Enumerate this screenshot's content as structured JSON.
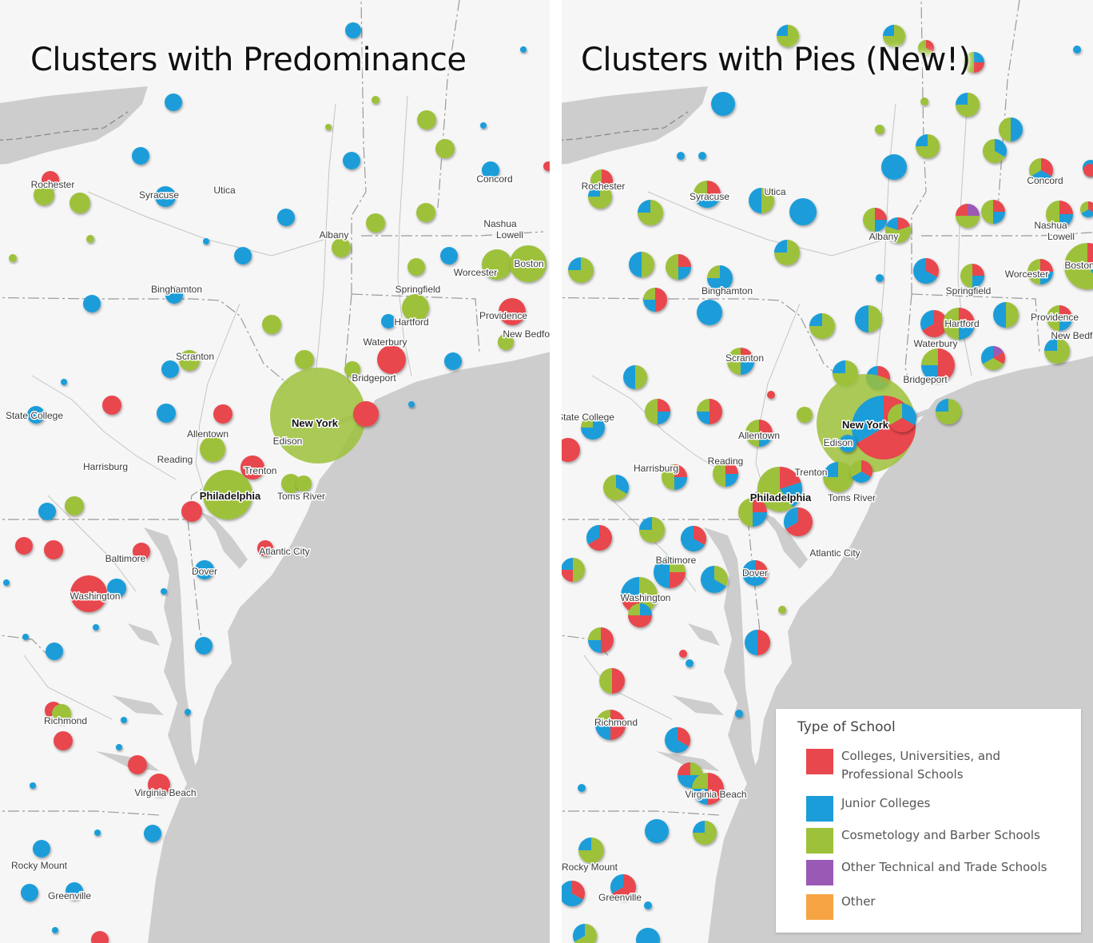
{
  "panels": {
    "left": {
      "title": "Clusters with Predominance"
    },
    "right": {
      "title": "Clusters with Pies (New!)"
    }
  },
  "legend": {
    "title": "Type of School",
    "items": [
      {
        "key": "college",
        "label": "Colleges, Universities, and Professional Schools",
        "color": "#e8474d"
      },
      {
        "key": "junior",
        "label": "Junior Colleges",
        "color": "#1a9dd9"
      },
      {
        "key": "cosmetology",
        "label": "Cosmetology and Barber Schools",
        "color": "#9dc13a"
      },
      {
        "key": "technical",
        "label": "Other Technical and Trade Schools",
        "color": "#9b59b6"
      },
      {
        "key": "other",
        "label": "Other",
        "color": "#f6a443"
      }
    ]
  },
  "map_colors": {
    "land": "#f6f6f6",
    "water": "#cdcdcd",
    "border": "#9a9a9a",
    "river": "#c4c4c4"
  },
  "cities": [
    "Rochester",
    "Syracuse",
    "Utica",
    "Albany",
    "Concord",
    "Nashua",
    "Lowell",
    "Boston",
    "Worcester",
    "Springfield",
    "Binghamton",
    "Hartford",
    "Providence",
    "New Bedford",
    "Waterbury",
    "Scranton",
    "Bridgeport",
    "State College",
    "Allentown",
    "New York",
    "Edison",
    "Reading",
    "Harrisburg",
    "Trenton",
    "Philadelphia",
    "Toms River",
    "Baltimore",
    "Dover",
    "Atlantic City",
    "Washington",
    "Richmond",
    "Virginia Beach",
    "Rocky Mount",
    "Greenville"
  ]
}
